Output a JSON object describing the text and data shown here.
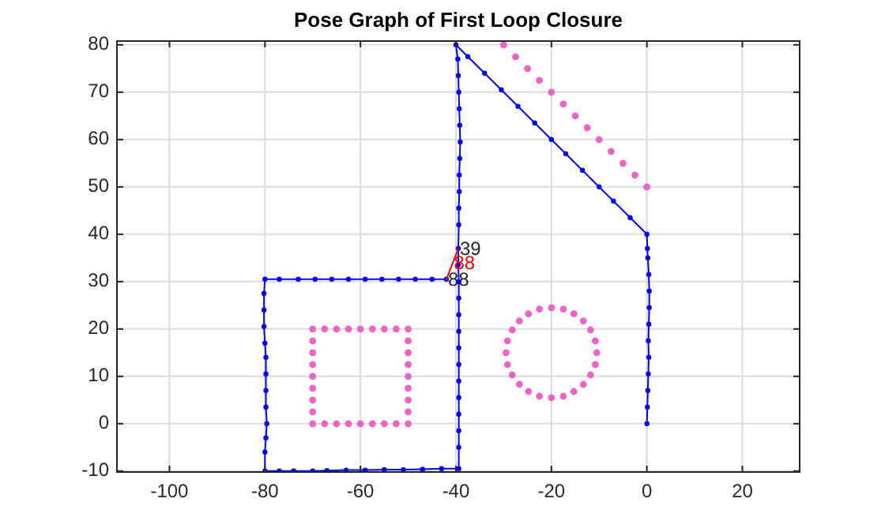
{
  "chart_data": {
    "type": "line",
    "title": "Pose Graph of First Loop Closure",
    "xlim": [
      -111,
      32
    ],
    "ylim": [
      -10.2,
      80.8
    ],
    "xticks": [
      -100,
      -80,
      -60,
      -40,
      -20,
      0,
      20
    ],
    "yticks": [
      -10,
      0,
      10,
      20,
      30,
      40,
      50,
      60,
      70,
      80
    ],
    "grid": true,
    "marker": "circle",
    "line_style": "solid",
    "series": [
      {
        "type": "scatter",
        "color": "#f062c8",
        "x": [
          -70,
          -67.5,
          -65,
          -62.5,
          -60,
          -57.5,
          -55,
          -52.5,
          -50,
          -70,
          -67.5,
          -65,
          -62.5,
          -60,
          -57.5,
          -55,
          -52.5,
          -50,
          -70,
          -70,
          -70,
          -70,
          -70,
          -70,
          -70,
          -50,
          -50,
          -50,
          -50,
          -50,
          -50,
          -50,
          -10.5,
          -10.8,
          -11.8,
          -13.3,
          -15.3,
          -17.5,
          -20,
          -22.5,
          -24.8,
          -26.7,
          -28.2,
          -29.2,
          -29.5,
          -29.2,
          -28.2,
          -26.7,
          -24.8,
          -22.5,
          -20,
          -17.5,
          -15.3,
          -13.3,
          -11.8,
          -10.8,
          -30,
          -27.5,
          -25,
          -22.5,
          -20,
          -17.5,
          -15,
          -12.5,
          -10,
          -7.5,
          -5,
          -2.5,
          0
        ],
        "values": [
          20,
          20,
          20,
          20,
          20,
          20,
          20,
          20,
          20,
          0,
          0,
          0,
          0,
          0,
          0,
          0,
          0,
          0,
          2.5,
          5,
          7.5,
          10,
          12.5,
          15,
          17.5,
          2.5,
          5,
          7.5,
          10,
          12.5,
          15,
          17.5,
          15,
          17.5,
          19.8,
          21.7,
          23.2,
          24.2,
          24.5,
          24.2,
          23.2,
          21.7,
          19.8,
          17.5,
          15,
          12.5,
          10.3,
          8.3,
          6.8,
          5.8,
          5.5,
          5.8,
          6.8,
          8.3,
          10.3,
          12.5,
          80,
          77.5,
          75,
          72.5,
          70,
          67.5,
          65,
          62.5,
          60,
          57.5,
          55,
          52.5,
          50
        ]
      },
      {
        "color": "#0000ff",
        "x": [
          0,
          0.1,
          0.2,
          0.3,
          0.4,
          0.3,
          0.4,
          0.5,
          0.5,
          0.4,
          0.2,
          0.1,
          0,
          -3.5,
          -7,
          -10,
          -13.5,
          -17,
          -20,
          -23.5,
          -27,
          -30.5,
          -34,
          -37.5,
          -40,
          -39.6,
          -39.5,
          -39.4,
          -39.3,
          -39.2,
          -39.1,
          -39.2,
          -39.3,
          -39.3,
          -39.4,
          -39.4,
          -39.5,
          -39.5,
          -39.4,
          -39.4,
          -39.4,
          -39.4,
          -39.4,
          -39.4,
          -39.4,
          -39.4,
          -39.4,
          -39.4,
          -39.4,
          -39.4,
          -43,
          -47,
          -51,
          -55,
          -59,
          -63,
          -67,
          -70,
          -74,
          -77,
          -80,
          -80,
          -79.8,
          -79.6,
          -79.8,
          -79.8,
          -79.8,
          -79.8,
          -80,
          -80.2,
          -80.2,
          -80.2,
          -80,
          -77,
          -73,
          -69.5,
          -66,
          -62.5,
          -59,
          -55.5,
          -52,
          -48.5,
          -45,
          -42
        ],
        "values": [
          0,
          3.5,
          7,
          10.5,
          14,
          17.5,
          21,
          24.5,
          28,
          31.5,
          35,
          37,
          40,
          43.5,
          47,
          50,
          53.5,
          57,
          60,
          63.5,
          67,
          70.5,
          74,
          77.5,
          80,
          77,
          73.5,
          70,
          66.5,
          63,
          59.5,
          56,
          52.5,
          49,
          45.5,
          42,
          37,
          33.5,
          30,
          26.5,
          23,
          19.5,
          16,
          12.5,
          9,
          5.5,
          2,
          -1.5,
          -5,
          -9.5,
          -9.5,
          -9.6,
          -9.7,
          -9.7,
          -9.8,
          -9.8,
          -9.9,
          -10,
          -10,
          -10,
          -10,
          -6,
          -3,
          0,
          3.5,
          7,
          10.5,
          14,
          17,
          20.5,
          24,
          27.5,
          30.5,
          30.5,
          30.5,
          30.5,
          30.5,
          30.5,
          30.5,
          30.5,
          30.5,
          30.5,
          30.5,
          30.5
        ]
      },
      {
        "name": "88",
        "color": "#ff0000",
        "marker": "none",
        "x": [
          -42,
          -39.5
        ],
        "values": [
          30.5,
          37
        ]
      }
    ],
    "annotations": [
      {
        "text": "39",
        "x": -39.5,
        "y": 37
      },
      {
        "text": "88",
        "x": -42,
        "y": 30.5
      }
    ]
  }
}
